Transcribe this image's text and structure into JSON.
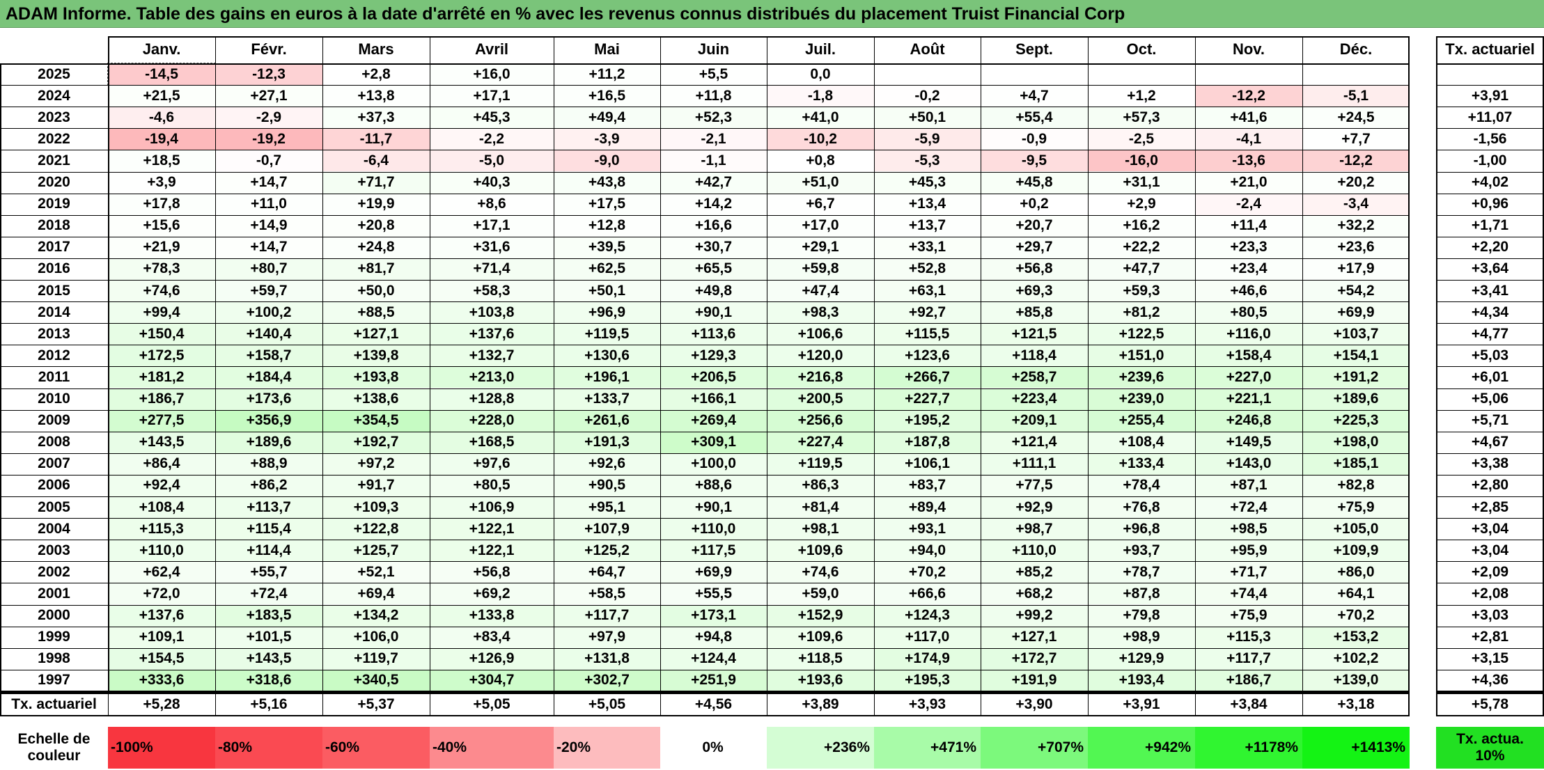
{
  "title": "ADAM Informe. Table des gains en euros à la date d'arrêté en % avec les revenus connus distribués du placement Truist Financial Corp",
  "chart_data": {
    "type": "heatmap",
    "title": "ADAM Informe. Table des gains en euros à la date d'arrêté en % avec les revenus connus distribués du placement Truist Financial Corp",
    "months": [
      "Janv.",
      "Févr.",
      "Mars",
      "Avril",
      "Mai",
      "Juin",
      "Juil.",
      "Août",
      "Sept.",
      "Oct.",
      "Nov.",
      "Déc."
    ],
    "annual_header": "Tx. actuariel",
    "rows": [
      {
        "year": "2025",
        "values": [
          "-14,5",
          "-12,3",
          "+2,8",
          "+16,0",
          "+11,2",
          "+5,5",
          "0,0",
          "",
          "",
          "",
          "",
          ""
        ],
        "rate": ""
      },
      {
        "year": "2024",
        "values": [
          "+21,5",
          "+27,1",
          "+13,8",
          "+17,1",
          "+16,5",
          "+11,8",
          "-1,8",
          "-0,2",
          "+4,7",
          "+1,2",
          "-12,2",
          "-5,1"
        ],
        "rate": "+3,91"
      },
      {
        "year": "2023",
        "values": [
          "-4,6",
          "-2,9",
          "+37,3",
          "+45,3",
          "+49,4",
          "+52,3",
          "+41,0",
          "+50,1",
          "+55,4",
          "+57,3",
          "+41,6",
          "+24,5"
        ],
        "rate": "+11,07"
      },
      {
        "year": "2022",
        "values": [
          "-19,4",
          "-19,2",
          "-11,7",
          "-2,2",
          "-3,9",
          "-2,1",
          "-10,2",
          "-5,9",
          "-0,9",
          "-2,5",
          "-4,1",
          "+7,7"
        ],
        "rate": "-1,56"
      },
      {
        "year": "2021",
        "values": [
          "+18,5",
          "-0,7",
          "-6,4",
          "-5,0",
          "-9,0",
          "-1,1",
          "+0,8",
          "-5,3",
          "-9,5",
          "-16,0",
          "-13,6",
          "-12,2"
        ],
        "rate": "-1,00"
      },
      {
        "year": "2020",
        "values": [
          "+3,9",
          "+14,7",
          "+71,7",
          "+40,3",
          "+43,8",
          "+42,7",
          "+51,0",
          "+45,3",
          "+45,8",
          "+31,1",
          "+21,0",
          "+20,2"
        ],
        "rate": "+4,02"
      },
      {
        "year": "2019",
        "values": [
          "+17,8",
          "+11,0",
          "+19,9",
          "+8,6",
          "+17,5",
          "+14,2",
          "+6,7",
          "+13,4",
          "+0,2",
          "+2,9",
          "-2,4",
          "-3,4"
        ],
        "rate": "+0,96"
      },
      {
        "year": "2018",
        "values": [
          "+15,6",
          "+14,9",
          "+20,8",
          "+17,1",
          "+12,8",
          "+16,6",
          "+17,0",
          "+13,7",
          "+20,7",
          "+16,2",
          "+11,4",
          "+32,2"
        ],
        "rate": "+1,71"
      },
      {
        "year": "2017",
        "values": [
          "+21,9",
          "+14,7",
          "+24,8",
          "+31,6",
          "+39,5",
          "+30,7",
          "+29,1",
          "+33,1",
          "+29,7",
          "+22,2",
          "+23,3",
          "+23,6"
        ],
        "rate": "+2,20"
      },
      {
        "year": "2016",
        "values": [
          "+78,3",
          "+80,7",
          "+81,7",
          "+71,4",
          "+62,5",
          "+65,5",
          "+59,8",
          "+52,8",
          "+56,8",
          "+47,7",
          "+23,4",
          "+17,9"
        ],
        "rate": "+3,64"
      },
      {
        "year": "2015",
        "values": [
          "+74,6",
          "+59,7",
          "+50,0",
          "+58,3",
          "+50,1",
          "+49,8",
          "+47,4",
          "+63,1",
          "+69,3",
          "+59,3",
          "+46,6",
          "+54,2"
        ],
        "rate": "+3,41"
      },
      {
        "year": "2014",
        "values": [
          "+99,4",
          "+100,2",
          "+88,5",
          "+103,8",
          "+96,9",
          "+90,1",
          "+98,3",
          "+92,7",
          "+85,8",
          "+81,2",
          "+80,5",
          "+69,9"
        ],
        "rate": "+4,34"
      },
      {
        "year": "2013",
        "values": [
          "+150,4",
          "+140,4",
          "+127,1",
          "+137,6",
          "+119,5",
          "+113,6",
          "+106,6",
          "+115,5",
          "+121,5",
          "+122,5",
          "+116,0",
          "+103,7"
        ],
        "rate": "+4,77"
      },
      {
        "year": "2012",
        "values": [
          "+172,5",
          "+158,7",
          "+139,8",
          "+132,7",
          "+130,6",
          "+129,3",
          "+120,0",
          "+123,6",
          "+118,4",
          "+151,0",
          "+158,4",
          "+154,1"
        ],
        "rate": "+5,03"
      },
      {
        "year": "2011",
        "values": [
          "+181,2",
          "+184,4",
          "+193,8",
          "+213,0",
          "+196,1",
          "+206,5",
          "+216,8",
          "+266,7",
          "+258,7",
          "+239,6",
          "+227,0",
          "+191,2"
        ],
        "rate": "+6,01"
      },
      {
        "year": "2010",
        "values": [
          "+186,7",
          "+173,6",
          "+138,6",
          "+128,8",
          "+133,7",
          "+166,1",
          "+200,5",
          "+227,7",
          "+223,4",
          "+239,0",
          "+221,1",
          "+189,6"
        ],
        "rate": "+5,06"
      },
      {
        "year": "2009",
        "values": [
          "+277,5",
          "+356,9",
          "+354,5",
          "+228,0",
          "+261,6",
          "+269,4",
          "+256,6",
          "+195,2",
          "+209,1",
          "+255,4",
          "+246,8",
          "+225,3"
        ],
        "rate": "+5,71"
      },
      {
        "year": "2008",
        "values": [
          "+143,5",
          "+189,6",
          "+192,7",
          "+168,5",
          "+191,3",
          "+309,1",
          "+227,4",
          "+187,8",
          "+121,4",
          "+108,4",
          "+149,5",
          "+198,0"
        ],
        "rate": "+4,67"
      },
      {
        "year": "2007",
        "values": [
          "+86,4",
          "+88,9",
          "+97,2",
          "+97,6",
          "+92,6",
          "+100,0",
          "+119,5",
          "+106,1",
          "+111,1",
          "+133,4",
          "+143,0",
          "+185,1"
        ],
        "rate": "+3,38"
      },
      {
        "year": "2006",
        "values": [
          "+92,4",
          "+86,2",
          "+91,7",
          "+80,5",
          "+90,5",
          "+88,6",
          "+86,3",
          "+83,7",
          "+77,5",
          "+78,4",
          "+87,1",
          "+82,8"
        ],
        "rate": "+2,80"
      },
      {
        "year": "2005",
        "values": [
          "+108,4",
          "+113,7",
          "+109,3",
          "+106,9",
          "+95,1",
          "+90,1",
          "+81,4",
          "+89,4",
          "+92,9",
          "+76,8",
          "+72,4",
          "+75,9"
        ],
        "rate": "+2,85"
      },
      {
        "year": "2004",
        "values": [
          "+115,3",
          "+115,4",
          "+122,8",
          "+122,1",
          "+107,9",
          "+110,0",
          "+98,1",
          "+93,1",
          "+98,7",
          "+96,8",
          "+98,5",
          "+105,0"
        ],
        "rate": "+3,04"
      },
      {
        "year": "2003",
        "values": [
          "+110,0",
          "+114,4",
          "+125,7",
          "+122,1",
          "+125,2",
          "+117,5",
          "+109,6",
          "+94,0",
          "+110,0",
          "+93,7",
          "+95,9",
          "+109,9"
        ],
        "rate": "+3,04"
      },
      {
        "year": "2002",
        "values": [
          "+62,4",
          "+55,7",
          "+52,1",
          "+56,8",
          "+64,7",
          "+69,9",
          "+74,6",
          "+70,2",
          "+85,2",
          "+78,7",
          "+71,7",
          "+86,0"
        ],
        "rate": "+2,09"
      },
      {
        "year": "2001",
        "values": [
          "+72,0",
          "+72,4",
          "+69,4",
          "+69,2",
          "+58,5",
          "+55,5",
          "+59,0",
          "+66,6",
          "+68,2",
          "+87,8",
          "+74,4",
          "+64,1"
        ],
        "rate": "+2,08"
      },
      {
        "year": "2000",
        "values": [
          "+137,6",
          "+183,5",
          "+134,2",
          "+133,8",
          "+117,7",
          "+173,1",
          "+152,9",
          "+124,3",
          "+99,2",
          "+79,8",
          "+75,9",
          "+70,2"
        ],
        "rate": "+3,03"
      },
      {
        "year": "1999",
        "values": [
          "+109,1",
          "+101,5",
          "+106,0",
          "+83,4",
          "+97,9",
          "+94,8",
          "+109,6",
          "+117,0",
          "+127,1",
          "+98,9",
          "+115,3",
          "+153,2"
        ],
        "rate": "+2,81"
      },
      {
        "year": "1998",
        "values": [
          "+154,5",
          "+143,5",
          "+119,7",
          "+126,9",
          "+131,8",
          "+124,4",
          "+118,5",
          "+174,9",
          "+172,7",
          "+129,9",
          "+117,7",
          "+102,2"
        ],
        "rate": "+3,15"
      },
      {
        "year": "1997",
        "values": [
          "+333,6",
          "+318,6",
          "+340,5",
          "+304,7",
          "+302,7",
          "+251,9",
          "+193,6",
          "+195,3",
          "+191,9",
          "+193,4",
          "+186,7",
          "+139,0"
        ],
        "rate": "+4,36"
      }
    ],
    "footer": {
      "label": "Tx. actuariel",
      "values": [
        "+5,28",
        "+5,16",
        "+5,37",
        "+5,05",
        "+5,05",
        "+4,56",
        "+3,89",
        "+3,93",
        "+3,90",
        "+3,91",
        "+3,84",
        "+3,18"
      ],
      "overall": "+5,78"
    },
    "scale": {
      "label": "Echelle de couleur",
      "steps": [
        "-100%",
        "-80%",
        "-60%",
        "-40%",
        "-20%",
        "0%",
        "+236%",
        "+471%",
        "+707%",
        "+942%",
        "+1178%",
        "+1413%"
      ],
      "step_colors": [
        "#f8363f",
        "#fa4a52",
        "#fb5c62",
        "#fc8a8e",
        "#fdbcbe",
        "#ffffff",
        "#d4fdd4",
        "#a8fba8",
        "#7cf97c",
        "#52f752",
        "#30f530",
        "#14f314"
      ],
      "rate_label": "Tx. actua. 10%",
      "rate_color": "#22e022"
    }
  }
}
